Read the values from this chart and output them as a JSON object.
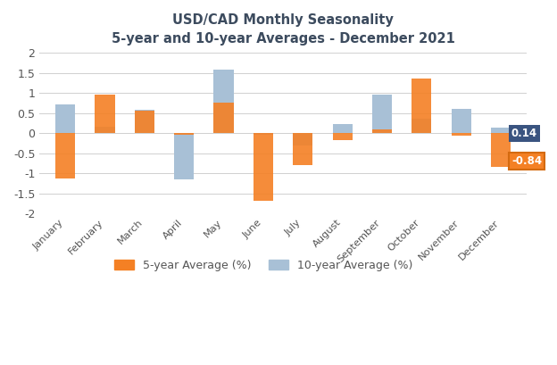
{
  "title_line1": "USD/CAD Monthly Seasonality",
  "title_line2": "5-year and 10-year Averages - December 2021",
  "months": [
    "January",
    "February",
    "March",
    "April",
    "May",
    "June",
    "July",
    "August",
    "September",
    "October",
    "November",
    "December"
  ],
  "five_year": [
    -1.13,
    0.95,
    0.57,
    -0.05,
    0.75,
    -1.68,
    -0.8,
    -0.18,
    0.1,
    1.35,
    -0.06,
    -0.84
  ],
  "ten_year": [
    0.72,
    0.15,
    0.58,
    -1.15,
    1.58,
    -0.05,
    -0.3,
    0.22,
    0.97,
    0.37,
    0.6,
    0.14
  ],
  "bar_color_5y": "#f48024",
  "bar_color_10y": "#a8c0d6",
  "ylim": [
    -2.0,
    2.0
  ],
  "yticks": [
    -2.0,
    -1.5,
    -1.0,
    -0.5,
    0.0,
    0.5,
    1.0,
    1.5,
    2.0
  ],
  "label_5y": "5-year Average (%)",
  "label_10y": "10-year Average (%)",
  "title_color": "#3c4b5e",
  "label_dec_5y": "-0.84",
  "label_dec_10y": "0.14",
  "annot_bg_5y": "#f48024",
  "annot_bg_5y_edge": "#d46a10",
  "annot_bg_10y": "#3a5480",
  "background_color": "#ffffff",
  "grid_color": "#d0d0d0",
  "tick_color": "#555555",
  "figsize": [
    6.24,
    4.09
  ],
  "dpi": 100
}
